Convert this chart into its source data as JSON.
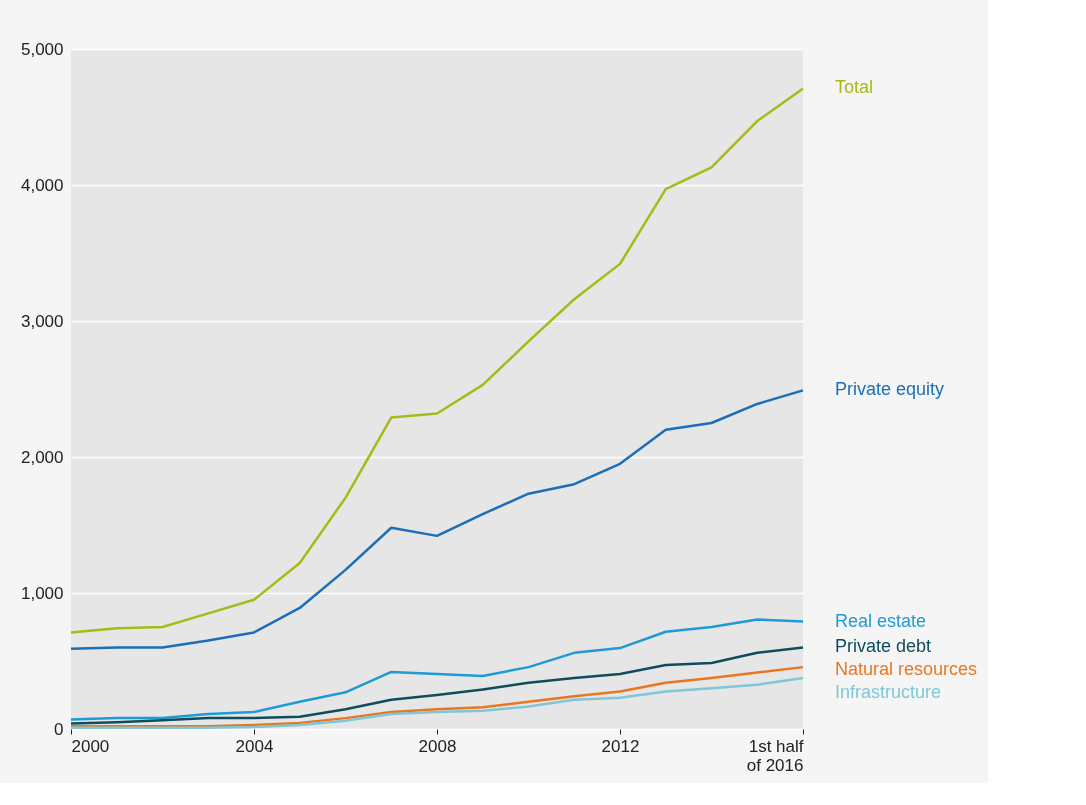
{
  "chart_data": {
    "type": "line",
    "x": [
      2000,
      2001,
      2002,
      2003,
      2004,
      2005,
      2006,
      2007,
      2008,
      2009,
      2010,
      2011,
      2012,
      2013,
      2014,
      2015,
      2016
    ],
    "xlim": [
      2000,
      2016
    ],
    "xticks": [
      2000,
      2004,
      2008,
      2012,
      {
        "value": 2016,
        "label": "1st half\nof 2016"
      }
    ],
    "ylim": [
      0,
      5000
    ],
    "yticks": [
      {
        "value": 0,
        "label": "0"
      },
      {
        "value": 1000,
        "label": "1,000"
      },
      {
        "value": 2000,
        "label": "2,000"
      },
      {
        "value": 3000,
        "label": "3,000"
      },
      {
        "value": 4000,
        "label": "4,000"
      },
      {
        "value": 5000,
        "label": "5,000"
      }
    ],
    "grid": "y",
    "legend": false,
    "marker": "none",
    "line_style": "solid",
    "series": [
      {
        "name": "Total",
        "color": "#a9b918",
        "values": [
          710,
          740,
          750,
          850,
          950,
          1220,
          1700,
          2290,
          2320,
          2530,
          2850,
          3160,
          3420,
          3970,
          4130,
          4470,
          4710
        ]
      },
      {
        "name": "Private equity",
        "color": "#1a6fb8",
        "values": [
          590,
          600,
          600,
          650,
          710,
          890,
          1170,
          1480,
          1420,
          1580,
          1730,
          1800,
          1950,
          2200,
          2250,
          2390,
          2490
        ]
      },
      {
        "name": "Real estate",
        "color": "#1f9ad6",
        "values": [
          70,
          80,
          80,
          110,
          125,
          200,
          270,
          420,
          405,
          390,
          455,
          560,
          595,
          715,
          750,
          805,
          790
        ]
      },
      {
        "name": "Private debt",
        "color": "#0f4c5c",
        "values": [
          40,
          50,
          65,
          80,
          80,
          90,
          145,
          215,
          250,
          290,
          340,
          375,
          405,
          470,
          485,
          560,
          600
        ]
      },
      {
        "name": "Natural resources",
        "color": "#e87722",
        "values": [
          20,
          20,
          20,
          20,
          30,
          45,
          80,
          125,
          145,
          160,
          200,
          240,
          275,
          340,
          375,
          415,
          455
        ]
      },
      {
        "name": "Infrastructure",
        "color": "#7fc7d6",
        "values": [
          10,
          10,
          10,
          10,
          15,
          30,
          60,
          110,
          125,
          135,
          165,
          215,
          230,
          275,
          300,
          325,
          375
        ]
      }
    ]
  }
}
